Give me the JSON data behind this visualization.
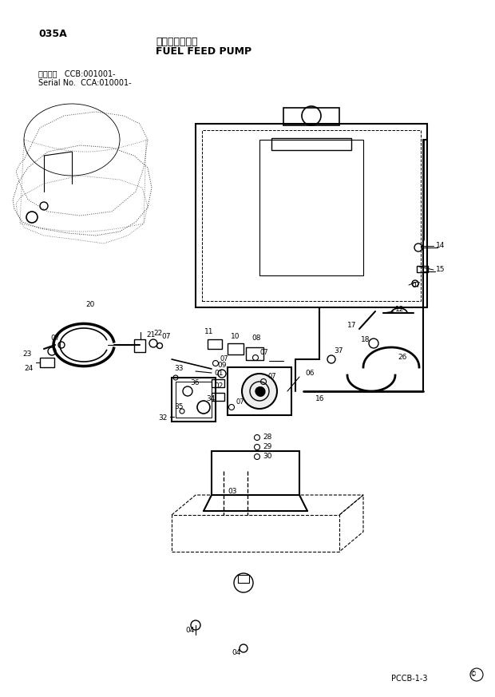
{
  "title_jp": "燃料給油ポンプ",
  "title_en": "FUEL FEED PUMP",
  "code": "035A",
  "serial_line1": "適用号機   CCB:001001-",
  "serial_line2": "Serial No.  CCA:010001-",
  "page_code": "PCCB-1-3",
  "bg_color": "#ffffff",
  "line_color": "#000000",
  "text_color": "#000000",
  "fig_width": 6.2,
  "fig_height": 8.73,
  "dpi": 100
}
